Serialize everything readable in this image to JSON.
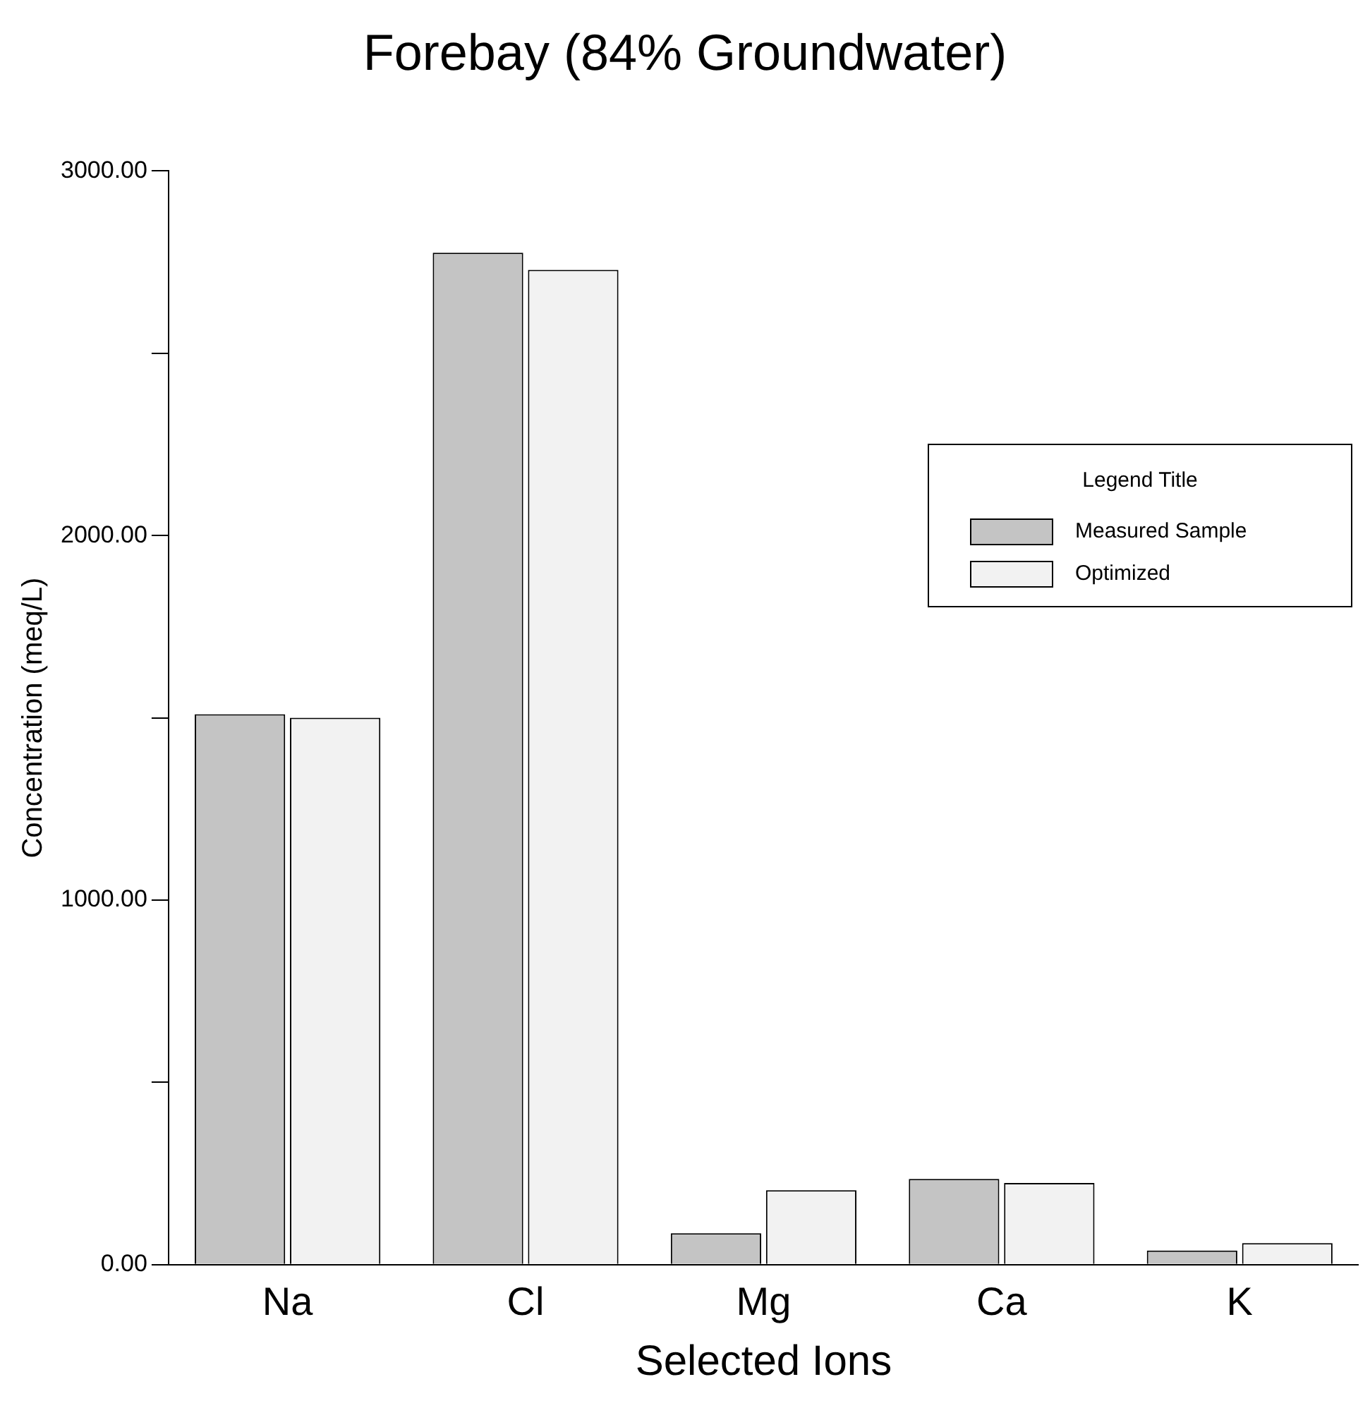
{
  "chart_data": {
    "type": "bar",
    "title": "Forebay (84% Groundwater)",
    "xlabel": "Selected Ions",
    "ylabel": "Concentration (meq/L)",
    "legend_title": "Legend Title",
    "categories": [
      "Na",
      "Cl",
      "Mg",
      "Ca",
      "K"
    ],
    "series": [
      {
        "name": "Measured Sample",
        "color": "#c4c4c4",
        "values": [
          1510,
          2776,
          86,
          235,
          39
        ]
      },
      {
        "name": "Optimized",
        "color": "#f2f2f2",
        "values": [
          1500,
          2729,
          204,
          224,
          59
        ]
      }
    ],
    "ylim": [
      0,
      3000
    ],
    "yticks": [
      {
        "value": 0,
        "label": "0.00"
      },
      {
        "value": 500,
        "label": null
      },
      {
        "value": 1000,
        "label": "1000.00"
      },
      {
        "value": 1500,
        "label": null
      },
      {
        "value": 2000,
        "label": "2000.00"
      },
      {
        "value": 2500,
        "label": null
      },
      {
        "value": 3000,
        "label": "3000.00"
      }
    ],
    "grid": false,
    "legend": "right"
  }
}
